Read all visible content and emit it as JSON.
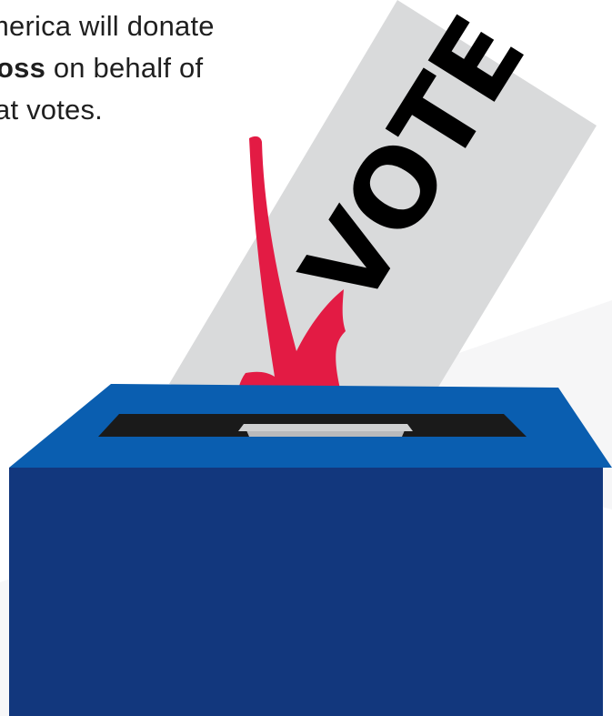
{
  "caption": {
    "line1": "merica will donate",
    "line2_bold": "oss",
    "line2_rest": " on behalf of",
    "line3": "at votes."
  },
  "ballot": {
    "word": "VOTE",
    "checkmark_color": "#e31b44",
    "paper_color": "#d9dadb"
  },
  "box": {
    "front_color": "#12377d",
    "top_color": "#0a5eb0",
    "slot_color": "#1a1a1a"
  }
}
